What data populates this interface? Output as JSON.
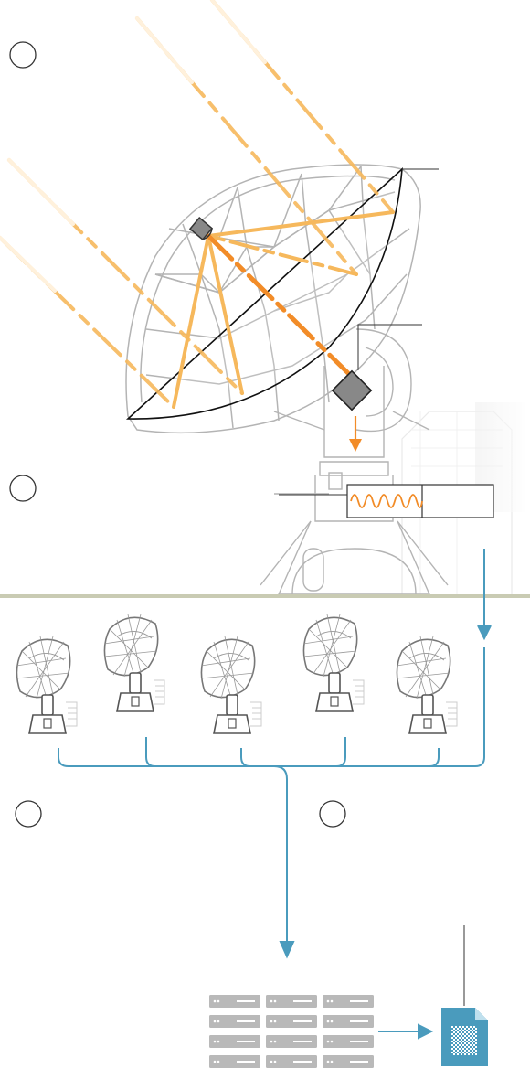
{
  "diagram": {
    "steps": [
      {
        "id": "step-1",
        "label": ""
      },
      {
        "id": "step-2",
        "label": ""
      },
      {
        "id": "step-3",
        "label": ""
      },
      {
        "id": "step-4",
        "label": ""
      }
    ],
    "antenna_count": 5,
    "server_count": 12,
    "callouts": [
      {
        "id": "subreflector-callout",
        "text": ""
      },
      {
        "id": "receiver-callout",
        "text": ""
      },
      {
        "id": "signal-callout",
        "text": ""
      },
      {
        "id": "data-file-callout",
        "text": ""
      }
    ]
  },
  "colors": {
    "light_ray": "#f6b85c",
    "light_ray_faint": "#fde3b8",
    "focused_beam": "#f28c28",
    "signal_wave": "#f28c28",
    "structure": "#b4b4b4",
    "structure_dark": "#555555",
    "outline": "#111111",
    "horizon": "#c9cbb3",
    "network": "#4a9bbd",
    "server": "#b9b9b9",
    "file_icon": "#4a9bbd"
  },
  "icons": [
    "antenna-icon",
    "receiver-icon",
    "server-rack-icon",
    "data-file-icon",
    "down-arrow-icon"
  ]
}
